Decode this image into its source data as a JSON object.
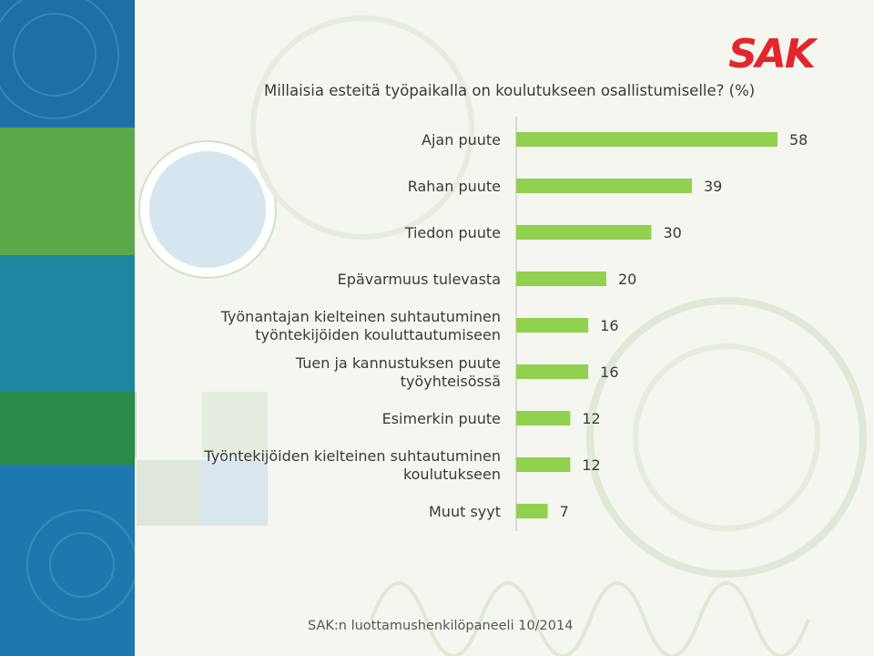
{
  "logo": {
    "text": "SAK",
    "color": "#e3262b"
  },
  "title": "Millaisia esteitä työpaikalla on koulutukseen osallistumiselle? (%)",
  "footer": "SAK:n luottamushenkilöpaneeli 10/2014",
  "colors": {
    "bar": "#92d050",
    "axis": "#bfbfbf",
    "text": "#3a3a3a"
  },
  "chart_data": {
    "type": "bar",
    "orientation": "horizontal",
    "title": "Millaisia esteitä työpaikalla on koulutukseen osallistumiselle? (%)",
    "xlim": [
      0,
      60
    ],
    "grid": false,
    "categories": [
      "Ajan puute",
      "Rahan puute",
      "Tiedon puute",
      "Epävarmuus tulevasta",
      "Työnantajan kielteinen suhtautuminen työntekijöiden kouluttautumiseen",
      "Tuen ja kannustuksen puute työyhteisössä",
      "Esimerkin puute",
      "Työntekijöiden kielteinen suhtautuminen koulutukseen",
      "Muut syyt"
    ],
    "label_lines": [
      [
        "Ajan puute"
      ],
      [
        "Rahan puute"
      ],
      [
        "Tiedon puute"
      ],
      [
        "Epävarmuus tulevasta"
      ],
      [
        "Työnantajan kielteinen suhtautuminen",
        "työntekijöiden kouluttautumiseen"
      ],
      [
        "Tuen ja kannustuksen puute",
        "työyhteisössä"
      ],
      [
        "Esimerkin puute"
      ],
      [
        "Työntekijöiden kielteinen suhtautuminen",
        "koulutukseen"
      ],
      [
        "Muut syyt"
      ]
    ],
    "values": [
      58,
      39,
      30,
      20,
      16,
      16,
      12,
      12,
      7
    ]
  }
}
